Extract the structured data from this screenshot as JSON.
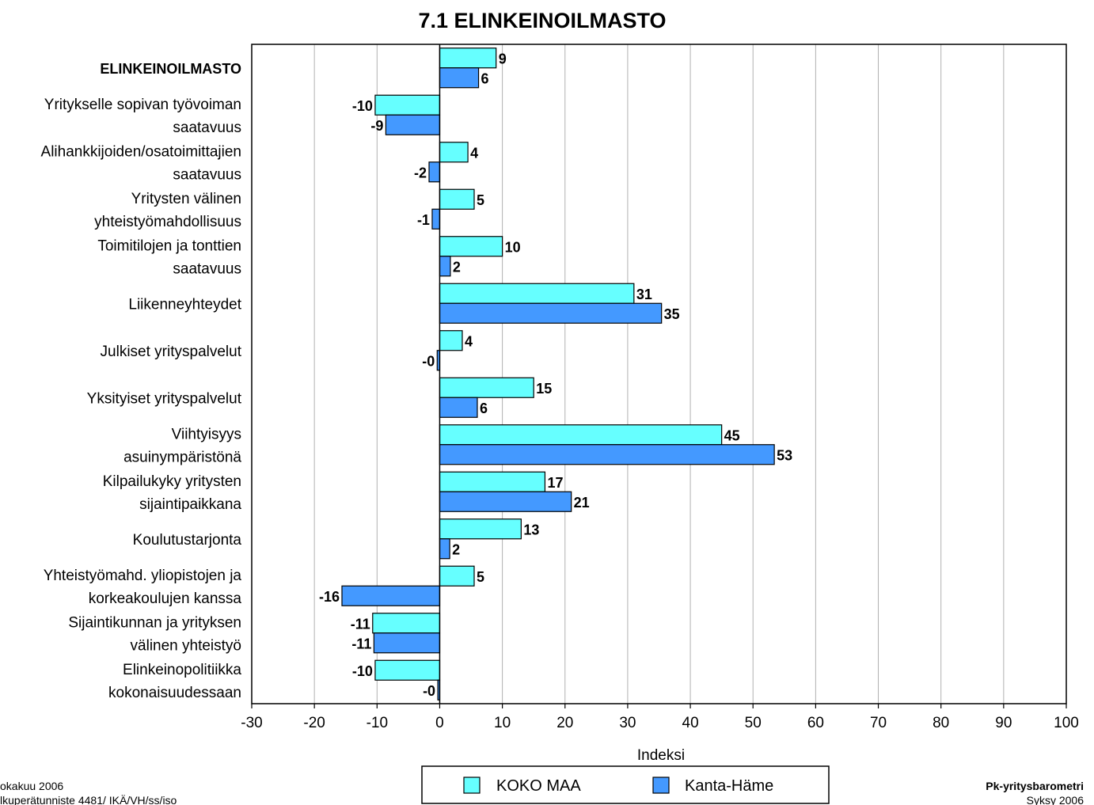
{
  "chart_data": {
    "type": "bar",
    "orientation": "horizontal",
    "title": "7.1 ELINKEINOILMASTO",
    "xlabel": "Indeksi",
    "xlim": [
      -30,
      100
    ],
    "xticks": [
      "-30",
      "-20",
      "-10",
      "0",
      "10",
      "20",
      "30",
      "40",
      "50",
      "60",
      "70",
      "80",
      "90",
      "100"
    ],
    "grid": "vertical",
    "categories": [
      [
        "ELINKEINOILMASTO"
      ],
      [
        "Yritykselle sopivan työvoiman",
        "saatavuus"
      ],
      [
        "Alihankkijoiden/osatoimittajien",
        "saatavuus"
      ],
      [
        "Yritysten välinen",
        "yhteistyömahdollisuus"
      ],
      [
        "Toimitilojen ja tonttien",
        "saatavuus"
      ],
      [
        "Liikenneyhteydet"
      ],
      [
        "Julkiset yrityspalvelut"
      ],
      [
        "Yksityiset yrityspalvelut"
      ],
      [
        "Viihtyisyys",
        "asuinympäristönä"
      ],
      [
        "Kilpailukyky yritysten",
        "sijaintipaikkana"
      ],
      [
        "Koulutustarjonta"
      ],
      [
        "Yhteistyömahd. yliopistojen ja",
        "korkeakoulujen kanssa"
      ],
      [
        "Sijaintikunnan ja yrityksen",
        "välinen yhteistyö"
      ],
      [
        "Elinkeinopolitiikka",
        "kokonaisuudessaan"
      ]
    ],
    "series": [
      {
        "name": "KOKO MAA",
        "color": "#66FFFF",
        "values": [
          9,
          -10.3,
          4.5,
          5.5,
          10,
          31,
          3.6,
          15,
          45,
          16.8,
          13,
          5.5,
          -10.7,
          -10.3
        ],
        "labels": [
          "9",
          "-10",
          "4",
          "5",
          "10",
          "31",
          "4",
          "15",
          "45",
          "17",
          "13",
          "5",
          "-11",
          "-10"
        ]
      },
      {
        "name": "Kanta-Häme",
        "color": "#4499FF",
        "values": [
          6.2,
          -8.6,
          -1.7,
          -1.2,
          1.7,
          35.4,
          -0.4,
          6,
          53.4,
          21,
          1.6,
          -15.6,
          -10.5,
          -0.3
        ],
        "labels": [
          "6",
          "-9",
          "-2",
          "-1",
          "2",
          "35",
          "-0",
          "6",
          "53",
          "21",
          "2",
          "-16",
          "-11",
          "-0"
        ]
      }
    ],
    "legend": "bottom-center"
  },
  "footer": {
    "left_line1": "okakuu 2006",
    "left_line2": "lkuperätunniste 4481/ IKÄ/VH/ss/iso",
    "right_line1": "Pk-yritysbarometri",
    "right_line2": "Syksy 2006"
  }
}
